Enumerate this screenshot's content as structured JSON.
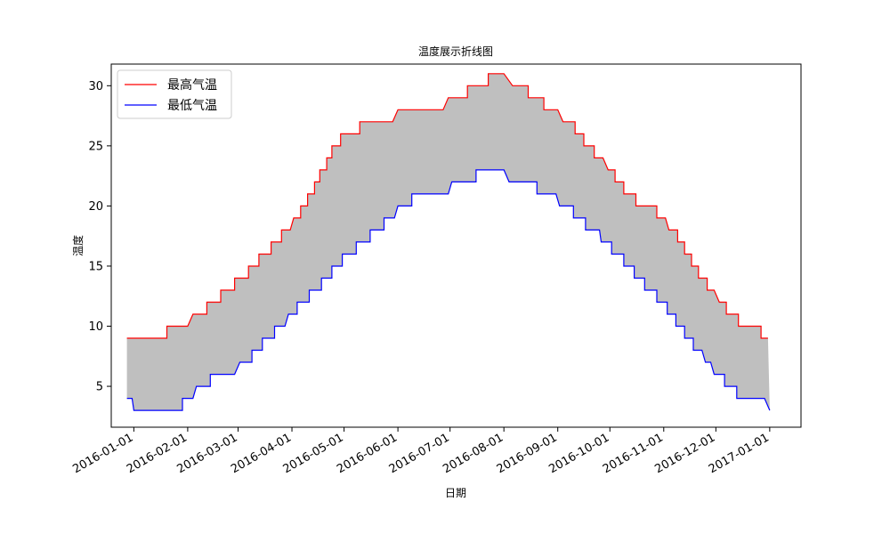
{
  "chart_data": {
    "type": "line",
    "title": "温度展示折线图",
    "xlabel": "日期",
    "ylabel": "温度",
    "x_ticks": [
      "2016-01-01",
      "2016-02-01",
      "2016-03-01",
      "2016-04-01",
      "2016-05-01",
      "2016-06-01",
      "2016-07-01",
      "2016-08-01",
      "2016-09-01",
      "2016-10-01",
      "2016-11-01",
      "2016-12-01",
      "2017-01-01"
    ],
    "y_ticks": [
      5,
      10,
      15,
      20,
      25,
      30
    ],
    "xlim": [
      "2015-12-19",
      "2017-01-19"
    ],
    "ylim": [
      1.6,
      31.8
    ],
    "grid": false,
    "legend": "top-left",
    "fill_between": {
      "color": "#bfbfbf"
    },
    "series": [
      {
        "name": "最高气温",
        "color": "#ff0000",
        "points": [
          [
            "2015-12-28",
            9
          ],
          [
            "2016-01-20",
            9
          ],
          [
            "2016-01-20",
            10
          ],
          [
            "2016-02-01",
            10
          ],
          [
            "2016-02-04",
            11
          ],
          [
            "2016-02-12",
            11
          ],
          [
            "2016-02-12",
            12
          ],
          [
            "2016-02-20",
            12
          ],
          [
            "2016-02-20",
            13
          ],
          [
            "2016-02-28",
            13
          ],
          [
            "2016-02-28",
            14
          ],
          [
            "2016-03-07",
            14
          ],
          [
            "2016-03-07",
            15
          ],
          [
            "2016-03-13",
            15
          ],
          [
            "2016-03-13",
            16
          ],
          [
            "2016-03-20",
            16
          ],
          [
            "2016-03-20",
            17
          ],
          [
            "2016-03-26",
            17
          ],
          [
            "2016-03-26",
            18
          ],
          [
            "2016-03-31",
            18
          ],
          [
            "2016-04-02",
            19
          ],
          [
            "2016-04-06",
            19
          ],
          [
            "2016-04-06",
            20
          ],
          [
            "2016-04-10",
            20
          ],
          [
            "2016-04-10",
            21
          ],
          [
            "2016-04-14",
            21
          ],
          [
            "2016-04-14",
            22
          ],
          [
            "2016-04-17",
            22
          ],
          [
            "2016-04-17",
            23
          ],
          [
            "2016-04-21",
            23
          ],
          [
            "2016-04-21",
            24
          ],
          [
            "2016-04-24",
            24
          ],
          [
            "2016-04-24",
            25
          ],
          [
            "2016-04-29",
            25
          ],
          [
            "2016-04-29",
            26
          ],
          [
            "2016-05-10",
            26
          ],
          [
            "2016-05-10",
            27
          ],
          [
            "2016-05-29",
            27
          ],
          [
            "2016-06-01",
            28
          ],
          [
            "2016-06-27",
            28
          ],
          [
            "2016-06-30",
            29
          ],
          [
            "2016-07-11",
            29
          ],
          [
            "2016-07-11",
            30
          ],
          [
            "2016-07-23",
            30
          ],
          [
            "2016-07-23",
            31
          ],
          [
            "2016-08-01",
            31
          ],
          [
            "2016-08-06",
            30
          ],
          [
            "2016-08-15",
            30
          ],
          [
            "2016-08-15",
            29
          ],
          [
            "2016-08-24",
            29
          ],
          [
            "2016-08-24",
            28
          ],
          [
            "2016-09-01",
            28
          ],
          [
            "2016-09-04",
            27
          ],
          [
            "2016-09-11",
            27
          ],
          [
            "2016-09-11",
            26
          ],
          [
            "2016-09-16",
            26
          ],
          [
            "2016-09-16",
            25
          ],
          [
            "2016-09-22",
            25
          ],
          [
            "2016-09-22",
            24
          ],
          [
            "2016-09-27",
            24
          ],
          [
            "2016-09-30",
            23
          ],
          [
            "2016-10-04",
            23
          ],
          [
            "2016-10-04",
            22
          ],
          [
            "2016-10-09",
            22
          ],
          [
            "2016-10-09",
            21
          ],
          [
            "2016-10-16",
            21
          ],
          [
            "2016-10-16",
            20
          ],
          [
            "2016-10-28",
            20
          ],
          [
            "2016-10-28",
            19
          ],
          [
            "2016-11-02",
            19
          ],
          [
            "2016-11-04",
            18
          ],
          [
            "2016-11-09",
            18
          ],
          [
            "2016-11-09",
            17
          ],
          [
            "2016-11-13",
            17
          ],
          [
            "2016-11-13",
            16
          ],
          [
            "2016-11-17",
            16
          ],
          [
            "2016-11-17",
            15
          ],
          [
            "2016-11-21",
            15
          ],
          [
            "2016-11-21",
            14
          ],
          [
            "2016-11-26",
            14
          ],
          [
            "2016-11-26",
            13
          ],
          [
            "2016-11-30",
            13
          ],
          [
            "2016-12-03",
            12
          ],
          [
            "2016-12-07",
            12
          ],
          [
            "2016-12-07",
            11
          ],
          [
            "2016-12-14",
            11
          ],
          [
            "2016-12-14",
            10
          ],
          [
            "2016-12-27",
            10
          ],
          [
            "2016-12-27",
            9
          ],
          [
            "2016-12-31",
            9
          ]
        ]
      },
      {
        "name": "最低气温",
        "color": "#0000ff",
        "points": [
          [
            "2015-12-28",
            4
          ],
          [
            "2015-12-31",
            4
          ],
          [
            "2016-01-01",
            3
          ],
          [
            "2016-01-29",
            3
          ],
          [
            "2016-01-29",
            4
          ],
          [
            "2016-02-04",
            4
          ],
          [
            "2016-02-06",
            5
          ],
          [
            "2016-02-14",
            5
          ],
          [
            "2016-02-14",
            6
          ],
          [
            "2016-02-28",
            6
          ],
          [
            "2016-03-02",
            7
          ],
          [
            "2016-03-09",
            7
          ],
          [
            "2016-03-09",
            8
          ],
          [
            "2016-03-15",
            8
          ],
          [
            "2016-03-15",
            9
          ],
          [
            "2016-03-22",
            9
          ],
          [
            "2016-03-22",
            10
          ],
          [
            "2016-03-28",
            10
          ],
          [
            "2016-03-30",
            11
          ],
          [
            "2016-04-04",
            11
          ],
          [
            "2016-04-04",
            12
          ],
          [
            "2016-04-11",
            12
          ],
          [
            "2016-04-11",
            13
          ],
          [
            "2016-04-18",
            13
          ],
          [
            "2016-04-18",
            14
          ],
          [
            "2016-04-24",
            14
          ],
          [
            "2016-04-24",
            15
          ],
          [
            "2016-04-30",
            15
          ],
          [
            "2016-04-30",
            16
          ],
          [
            "2016-05-08",
            16
          ],
          [
            "2016-05-08",
            17
          ],
          [
            "2016-05-16",
            17
          ],
          [
            "2016-05-16",
            18
          ],
          [
            "2016-05-24",
            18
          ],
          [
            "2016-05-24",
            19
          ],
          [
            "2016-05-30",
            19
          ],
          [
            "2016-06-01",
            20
          ],
          [
            "2016-06-09",
            20
          ],
          [
            "2016-06-09",
            21
          ],
          [
            "2016-06-30",
            21
          ],
          [
            "2016-07-02",
            22
          ],
          [
            "2016-07-16",
            22
          ],
          [
            "2016-07-16",
            23
          ],
          [
            "2016-08-01",
            23
          ],
          [
            "2016-08-04",
            22
          ],
          [
            "2016-08-20",
            22
          ],
          [
            "2016-08-20",
            21
          ],
          [
            "2016-08-31",
            21
          ],
          [
            "2016-09-02",
            20
          ],
          [
            "2016-09-10",
            20
          ],
          [
            "2016-09-10",
            19
          ],
          [
            "2016-09-17",
            19
          ],
          [
            "2016-09-17",
            18
          ],
          [
            "2016-09-25",
            18
          ],
          [
            "2016-09-26",
            17
          ],
          [
            "2016-10-02",
            17
          ],
          [
            "2016-10-02",
            16
          ],
          [
            "2016-10-09",
            16
          ],
          [
            "2016-10-09",
            15
          ],
          [
            "2016-10-15",
            15
          ],
          [
            "2016-10-15",
            14
          ],
          [
            "2016-10-21",
            14
          ],
          [
            "2016-10-21",
            13
          ],
          [
            "2016-10-28",
            13
          ],
          [
            "2016-10-28",
            12
          ],
          [
            "2016-11-03",
            12
          ],
          [
            "2016-11-03",
            11
          ],
          [
            "2016-11-08",
            11
          ],
          [
            "2016-11-08",
            10
          ],
          [
            "2016-11-13",
            10
          ],
          [
            "2016-11-13",
            9
          ],
          [
            "2016-11-18",
            9
          ],
          [
            "2016-11-18",
            8
          ],
          [
            "2016-11-23",
            8
          ],
          [
            "2016-11-25",
            7
          ],
          [
            "2016-11-28",
            7
          ],
          [
            "2016-11-30",
            6
          ],
          [
            "2016-12-06",
            6
          ],
          [
            "2016-12-06",
            5
          ],
          [
            "2016-12-13",
            5
          ],
          [
            "2016-12-13",
            4
          ],
          [
            "2016-12-29",
            4
          ],
          [
            "2017-01-01",
            3
          ]
        ]
      }
    ]
  }
}
